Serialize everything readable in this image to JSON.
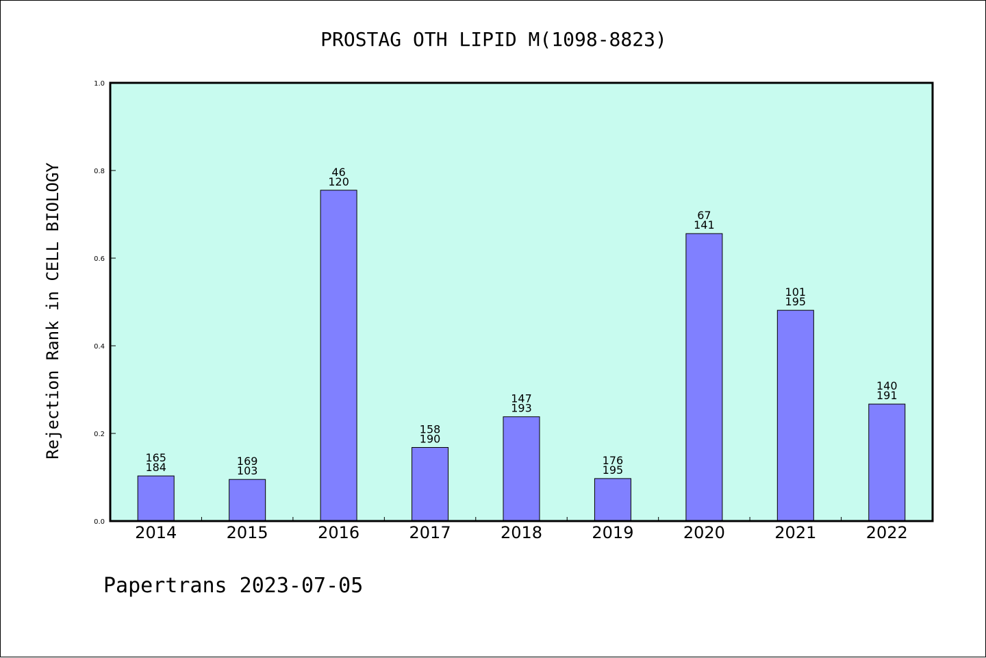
{
  "chart_data": {
    "type": "bar",
    "title": "PROSTAG OTH LIPID M(1098-8823)",
    "xlabel": "",
    "ylabel": "Rejection Rank in CELL BIOLOGY",
    "ylim": [
      0,
      1.0
    ],
    "yticks": [
      "0.0",
      "0.2",
      "0.4",
      "0.6",
      "0.8",
      "1.0"
    ],
    "categories": [
      "2014",
      "2015",
      "2016",
      "2017",
      "2018",
      "2019",
      "2020",
      "2021",
      "2022"
    ],
    "values": [
      0.103,
      0.095,
      0.755,
      0.168,
      0.238,
      0.097,
      0.656,
      0.481,
      0.267
    ],
    "bar_labels_top": [
      "165",
      "169",
      "46",
      "158",
      "147",
      "176",
      "67",
      "101",
      "140"
    ],
    "bar_labels_bottom": [
      "184",
      "103",
      "120",
      "190",
      "193",
      "195",
      "141",
      "195",
      "191"
    ],
    "grid": false,
    "colors": {
      "plot_background": "#c8fbef",
      "bar_fill": "#8080ff",
      "bar_stroke": "#000000"
    }
  },
  "footer": "Papertrans 2023-07-05"
}
